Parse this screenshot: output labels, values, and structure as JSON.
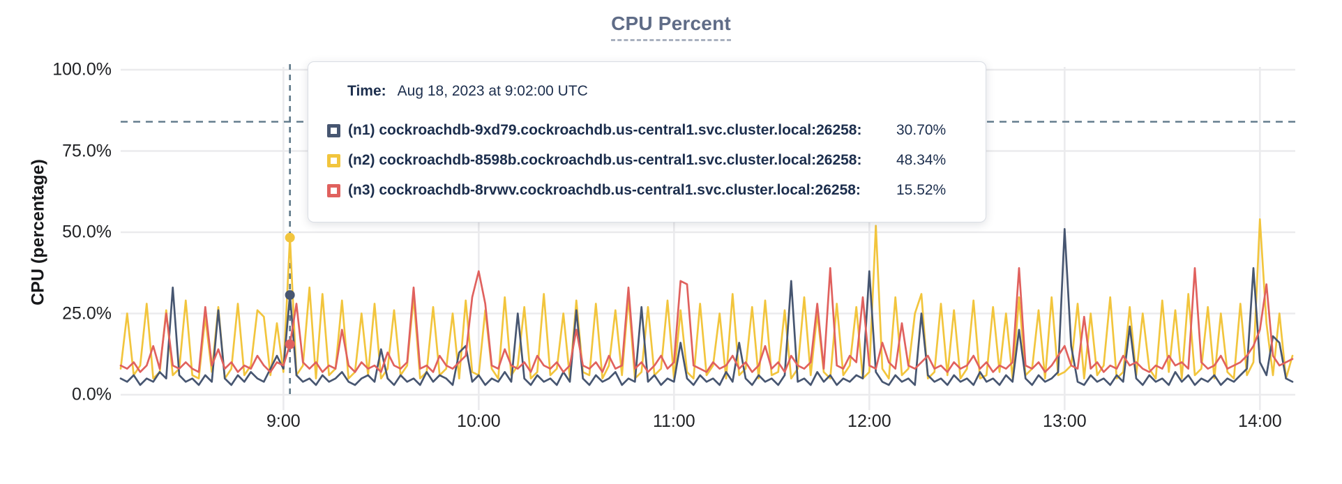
{
  "title": "CPU Percent",
  "y_axis": {
    "label": "CPU (percentage)"
  },
  "tooltip": {
    "time_label": "Time:",
    "time_value": "Aug 18, 2023 at 9:02:00 UTC",
    "rows": [
      {
        "series": "n1",
        "label": "(n1) cockroachdb-9xd79.cockroachdb.us-central1.svc.cluster.local:26258:",
        "value": "30.70%",
        "color": "#475671"
      },
      {
        "series": "n2",
        "label": "(n2) cockroachdb-8598b.cockroachdb.us-central1.svc.cluster.local:26258:",
        "value": "48.34%",
        "color": "#f2c53d"
      },
      {
        "series": "n3",
        "label": "(n3) cockroachdb-8rvwv.cockroachdb.us-central1.svc.cluster.local:26258:",
        "value": "15.52%",
        "color": "#e0615e"
      }
    ]
  },
  "colors": {
    "grid": "#ebebed",
    "dashed_rule": "#5d7789",
    "axis_text": "#1f2023",
    "title_text": "#5f6c87"
  },
  "chart_data": {
    "type": "line",
    "title": "CPU Percent",
    "xlabel": "",
    "ylabel": "CPU (percentage)",
    "ylim": [
      0,
      100
    ],
    "grid": true,
    "x_start": "8:10",
    "x_end": "14:10",
    "x_step_minutes": 2,
    "y_ticks": [
      {
        "label": "0.0%",
        "value": 0
      },
      {
        "label": "25.0%",
        "value": 25
      },
      {
        "label": "50.0%",
        "value": 50
      },
      {
        "label": "75.0%",
        "value": 75
      },
      {
        "label": "100.0%",
        "value": 100
      }
    ],
    "x_ticks": [
      {
        "label": "9:00",
        "index": 25
      },
      {
        "label": "10:00",
        "index": 55
      },
      {
        "label": "11:00",
        "index": 85
      },
      {
        "label": "12:00",
        "index": 115
      },
      {
        "label": "13:00",
        "index": 145
      },
      {
        "label": "14:00",
        "index": 175
      }
    ],
    "threshold_percent": 84,
    "hover": {
      "index": 26,
      "time": "Aug 18, 2023 at 9:02:00 UTC"
    },
    "series": [
      {
        "name": "(n1) cockroachdb-9xd79.cockroachdb.us-central1.svc.cluster.local:26258",
        "short": "n1",
        "color": "#475671",
        "hover_value": 30.7,
        "values": [
          5,
          4,
          6,
          3,
          5,
          4,
          7,
          5,
          33,
          6,
          4,
          5,
          3,
          6,
          4,
          26,
          5,
          3,
          6,
          4,
          7,
          5,
          4,
          8,
          12,
          8,
          30.7,
          6,
          4,
          5,
          3,
          6,
          4,
          5,
          7,
          4,
          3,
          5,
          6,
          4,
          14,
          5,
          3,
          6,
          4,
          5,
          3,
          7,
          4,
          6,
          5,
          3,
          13,
          15,
          4,
          6,
          3,
          5,
          4,
          7,
          4,
          25,
          5,
          3,
          6,
          4,
          5,
          3,
          7,
          4,
          26,
          5,
          3,
          6,
          4,
          5,
          7,
          3,
          5,
          4,
          27,
          4,
          6,
          3,
          5,
          4,
          16,
          5,
          3,
          6,
          4,
          5,
          3,
          7,
          4,
          16,
          5,
          3,
          6,
          4,
          5,
          3,
          6,
          35,
          4,
          5,
          3,
          7,
          4,
          6,
          3,
          5,
          4,
          6,
          5,
          38,
          7,
          4,
          3,
          6,
          4,
          5,
          3,
          25,
          6,
          4,
          5,
          3,
          6,
          4,
          5,
          3,
          7,
          4,
          5,
          3,
          6,
          4,
          20,
          5,
          3,
          6,
          4,
          5,
          7,
          51,
          15,
          4,
          3,
          6,
          4,
          5,
          3,
          6,
          4,
          21,
          5,
          3,
          6,
          4,
          5,
          3,
          7,
          4,
          6,
          3,
          5,
          4,
          6,
          3,
          5,
          4,
          6,
          8,
          39,
          10,
          6,
          18,
          16,
          5,
          4
        ]
      },
      {
        "name": "(n2) cockroachdb-8598b.cockroachdb.us-central1.svc.cluster.local:26258",
        "short": "n2",
        "color": "#f2c53d",
        "hover_value": 48.34,
        "values": [
          8,
          25,
          6,
          9,
          28,
          5,
          7,
          26,
          6,
          8,
          29,
          6,
          5,
          24,
          7,
          27,
          5,
          8,
          28,
          6,
          9,
          26,
          24,
          6,
          22,
          7,
          48.34,
          6,
          9,
          33,
          5,
          31,
          6,
          8,
          29,
          5,
          7,
          25,
          6,
          28,
          5,
          8,
          26,
          6,
          9,
          30,
          5,
          7,
          27,
          6,
          8,
          25,
          5,
          29,
          7,
          6,
          26,
          8,
          5,
          30,
          6,
          9,
          27,
          5,
          7,
          31,
          6,
          8,
          25,
          5,
          29,
          7,
          6,
          28,
          5,
          9,
          26,
          6,
          30,
          5,
          7,
          27,
          6,
          8,
          29,
          5,
          26,
          7,
          5,
          28,
          6,
          9,
          25,
          5,
          31,
          6,
          8,
          27,
          5,
          29,
          6,
          7,
          26,
          5,
          8,
          30,
          6,
          25,
          7,
          5,
          28,
          6,
          9,
          27,
          5,
          7,
          52,
          8,
          5,
          30,
          6,
          8,
          25,
          31,
          5,
          7,
          28,
          6,
          26,
          5,
          8,
          29,
          5,
          6,
          27,
          7,
          25,
          5,
          30,
          6,
          8,
          26,
          5,
          30,
          6,
          7,
          9,
          28,
          5,
          25,
          6,
          9,
          30,
          5,
          7,
          27,
          6,
          25,
          8,
          5,
          29,
          7,
          26,
          5,
          31,
          6,
          8,
          27,
          5,
          25,
          7,
          5,
          28,
          6,
          10,
          54,
          22,
          6,
          25,
          5,
          12
        ]
      },
      {
        "name": "(n3) cockroachdb-8rvwv.cockroachdb.us-central1.svc.cluster.local:26258",
        "short": "n3",
        "color": "#e0615e",
        "hover_value": 15.52,
        "values": [
          9,
          8,
          10,
          7,
          9,
          15,
          8,
          25,
          9,
          8,
          10,
          8,
          7,
          27,
          9,
          14,
          8,
          10,
          7,
          9,
          8,
          12,
          9,
          7,
          10,
          9,
          15.52,
          28,
          10,
          8,
          10,
          7,
          9,
          8,
          20,
          9,
          7,
          10,
          8,
          9,
          7,
          13,
          9,
          8,
          10,
          33,
          8,
          9,
          7,
          12,
          9,
          8,
          10,
          12,
          30,
          38,
          28,
          9,
          8,
          14,
          9,
          8,
          10,
          7,
          12,
          9,
          8,
          10,
          7,
          9,
          20,
          9,
          8,
          10,
          7,
          12,
          8,
          9,
          33,
          8,
          10,
          7,
          9,
          12,
          8,
          10,
          35,
          34,
          9,
          8,
          7,
          10,
          8,
          9,
          12,
          8,
          10,
          7,
          9,
          15,
          8,
          10,
          7,
          12,
          9,
          8,
          10,
          28,
          8,
          39,
          9,
          8,
          12,
          10,
          30,
          9,
          8,
          16,
          10,
          8,
          22,
          9,
          8,
          10,
          12,
          8,
          9,
          7,
          10,
          8,
          9,
          12,
          8,
          10,
          7,
          9,
          8,
          10,
          39,
          9,
          8,
          10,
          7,
          9,
          12,
          15,
          9,
          8,
          24,
          8,
          10,
          7,
          9,
          8,
          12,
          9,
          10,
          8,
          7,
          9,
          8,
          12,
          9,
          10,
          8,
          39,
          10,
          8,
          9,
          12,
          8,
          9,
          10,
          12,
          15,
          20,
          34,
          12,
          9,
          10,
          11
        ]
      }
    ]
  }
}
